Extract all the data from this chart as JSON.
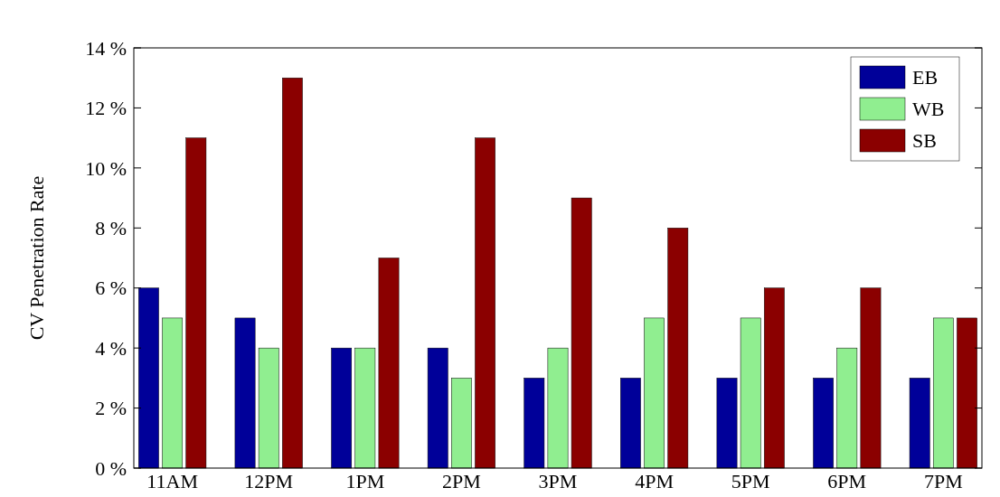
{
  "chart_data": {
    "type": "bar",
    "ylabel": "CV Penetration Rate",
    "categories": [
      "11AM",
      "12PM",
      "1PM",
      "2PM",
      "3PM",
      "4PM",
      "5PM",
      "6PM",
      "7PM"
    ],
    "series": [
      {
        "name": "EB",
        "color": "#000099",
        "values": [
          6,
          5,
          4,
          4,
          3,
          3,
          3,
          3,
          3
        ]
      },
      {
        "name": "WB",
        "color": "#90ee90",
        "values": [
          5,
          4,
          4,
          3,
          4,
          5,
          5,
          4,
          5
        ]
      },
      {
        "name": "SB",
        "color": "#8b0000",
        "values": [
          11,
          13,
          7,
          11,
          9,
          8,
          6,
          6,
          5
        ]
      }
    ],
    "ylim": [
      0,
      14
    ],
    "yticks": [
      {
        "value": 0,
        "label": "0 %"
      },
      {
        "value": 2,
        "label": "2 %"
      },
      {
        "value": 4,
        "label": "4 %"
      },
      {
        "value": 6,
        "label": "6 %"
      },
      {
        "value": 8,
        "label": "8 %"
      },
      {
        "value": 10,
        "label": "10 %"
      },
      {
        "value": 12,
        "label": "12 %"
      },
      {
        "value": 14,
        "label": "14 %"
      }
    ],
    "grid": false,
    "legend": "top right"
  }
}
